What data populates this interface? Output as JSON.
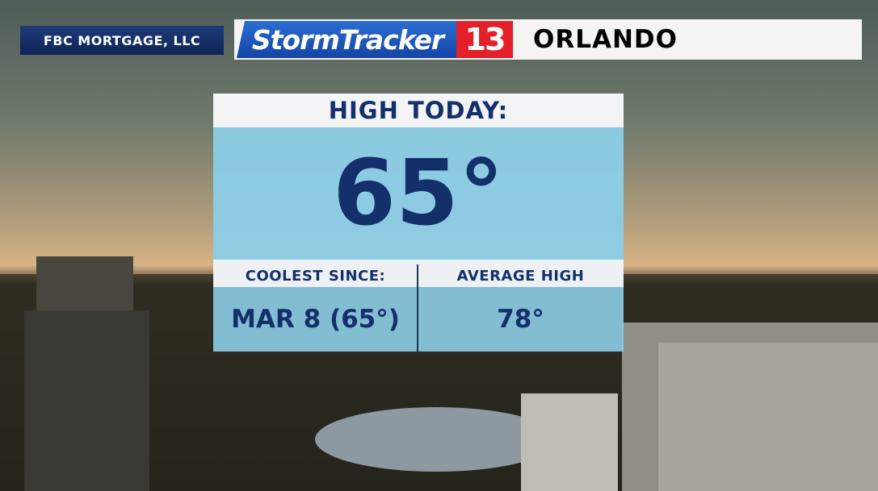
{
  "sponsor": "FBC MORTGAGE, LLC",
  "logo": {
    "brand": "StormTracker",
    "number": "13"
  },
  "location": "ORLANDO",
  "panel": {
    "title": "HIGH TODAY:",
    "value": "65°",
    "stats": [
      {
        "label": "COOLEST SINCE:",
        "value": "MAR 8 (65°)"
      },
      {
        "label": "AVERAGE HIGH",
        "value": "78°"
      }
    ]
  }
}
